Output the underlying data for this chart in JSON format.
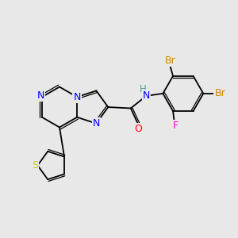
{
  "background_color": "#e8e8e8",
  "atom_colors": {
    "N": "#0000ff",
    "O": "#ff0000",
    "F": "#ff00cc",
    "Br": "#cc8800",
    "S": "#cccc00",
    "H_teal": "#559999"
  },
  "bond_color": "#000000"
}
